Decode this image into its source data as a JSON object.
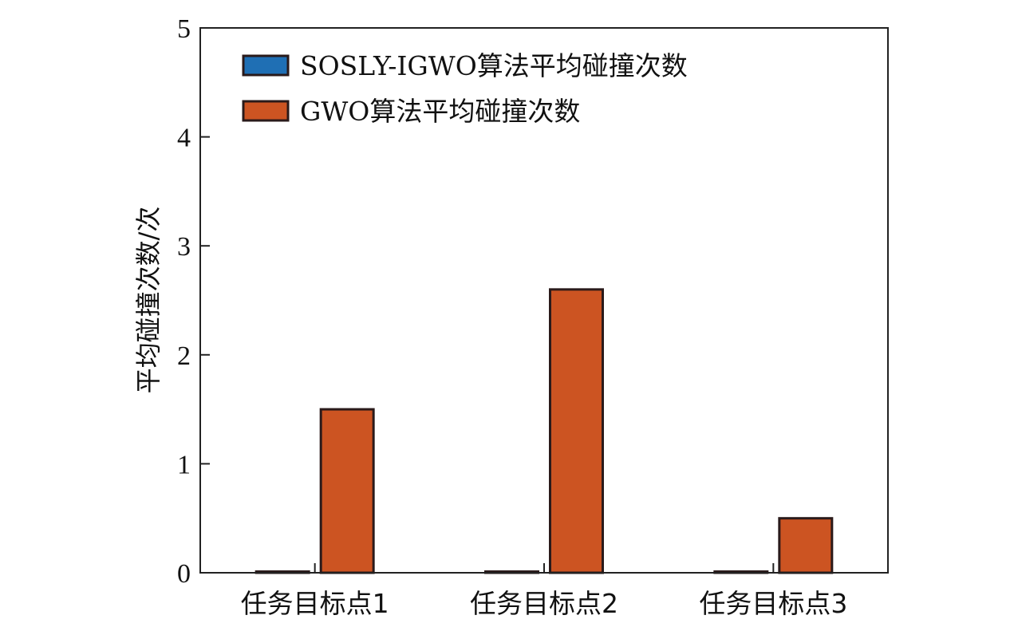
{
  "chart_data": {
    "type": "bar",
    "title": "",
    "xlabel": "",
    "ylabel": "平均碰撞次数/次",
    "ylim": [
      0,
      5
    ],
    "yticks": [
      0,
      1,
      2,
      3,
      4,
      5
    ],
    "grid": false,
    "legend_position": "top-left",
    "categories": [
      "任务目标点1",
      "任务目标点2",
      "任务目标点3"
    ],
    "series": [
      {
        "name": "SOSLY-IGWO算法平均碰撞次数",
        "color": "#1f6fb4",
        "values": [
          0,
          0,
          0
        ]
      },
      {
        "name": "GWO算法平均碰撞次数",
        "color": "#cc5422",
        "values": [
          1.5,
          2.6,
          0.5
        ]
      }
    ]
  }
}
